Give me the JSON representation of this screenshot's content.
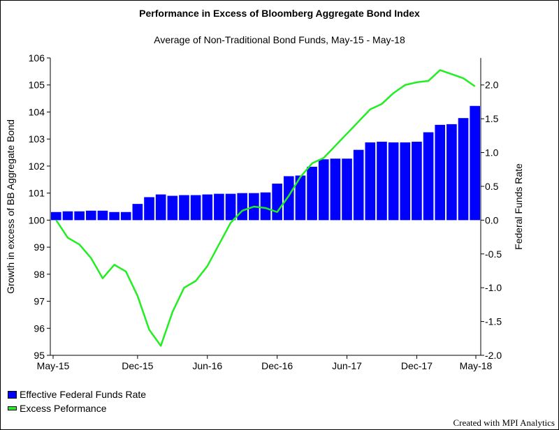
{
  "chart_data": {
    "type": "bar+line",
    "title": "Performance in Excess of Bloomberg Aggregate Bond Index",
    "subtitle": "Average of Non-Traditional Bond Funds, May-15 - May-18",
    "ylabel_left": "Growth in excess of BB Aggregate Bond",
    "ylabel_right": "Federal Funds Rate",
    "ylim_left": [
      95,
      106
    ],
    "ylim_right": [
      -2.0,
      2.4
    ],
    "yticks_left": [
      "95",
      "96",
      "97",
      "98",
      "99",
      "100",
      "101",
      "102",
      "103",
      "104",
      "105",
      "106"
    ],
    "yticks_right": [
      "-2.0",
      "-1.5",
      "-1.0",
      "-0.5",
      "0.0",
      "0.5",
      "1.0",
      "1.5",
      "2.0"
    ],
    "xtick_labels": [
      "May-15",
      "Dec-15",
      "Jun-16",
      "Dec-16",
      "Jun-17",
      "Dec-17",
      "May-18"
    ],
    "xtick_index": [
      0,
      7,
      13,
      19,
      25,
      31,
      36
    ],
    "months": 37,
    "series": [
      {
        "name": "Effective Federal Funds Rate",
        "type": "bar",
        "axis": "right",
        "color": "#0000ff",
        "values": [
          0.12,
          0.13,
          0.13,
          0.14,
          0.14,
          0.12,
          0.12,
          0.24,
          0.34,
          0.38,
          0.36,
          0.37,
          0.37,
          0.38,
          0.39,
          0.39,
          0.4,
          0.4,
          0.41,
          0.54,
          0.65,
          0.66,
          0.79,
          0.9,
          0.91,
          0.91,
          1.04,
          1.15,
          1.16,
          1.15,
          1.15,
          1.16,
          1.3,
          1.41,
          1.42,
          1.51,
          1.69
        ]
      },
      {
        "name": "Excess Peformance",
        "type": "line",
        "axis": "left",
        "color": "#22ee22",
        "values": [
          100.0,
          99.35,
          99.1,
          98.6,
          97.85,
          98.35,
          98.1,
          97.2,
          95.95,
          95.35,
          96.6,
          97.5,
          97.75,
          98.3,
          99.1,
          99.9,
          100.35,
          100.5,
          100.45,
          100.3,
          100.9,
          101.6,
          102.1,
          102.3,
          102.75,
          103.2,
          103.65,
          104.1,
          104.3,
          104.7,
          105.0,
          105.1,
          105.15,
          105.55,
          105.4,
          105.25,
          104.95
        ]
      }
    ]
  },
  "legend": {
    "bar_label": "Effective Federal Funds Rate",
    "line_label": "Excess Peformance"
  },
  "credit": "Created with MPI Analytics"
}
